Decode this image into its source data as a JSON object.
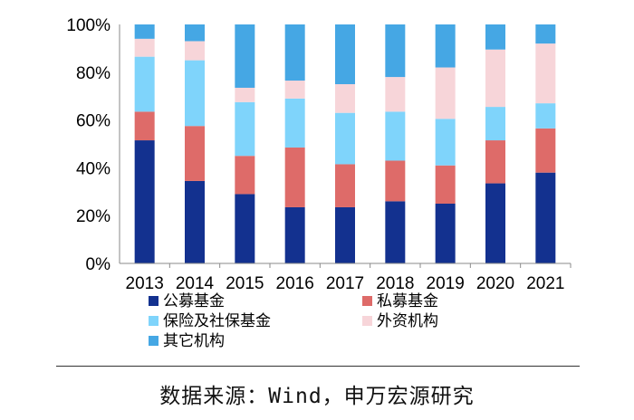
{
  "chart_data": {
    "type": "stacked-bar-100",
    "categories": [
      "2013",
      "2014",
      "2015",
      "2016",
      "2017",
      "2018",
      "2019",
      "2020",
      "2021"
    ],
    "ylim": [
      0,
      100
    ],
    "yticks": [
      "0%",
      "20%",
      "40%",
      "60%",
      "80%",
      "100%"
    ],
    "series": [
      {
        "name": "公募基金",
        "color": "#13318f",
        "values": [
          51.5,
          34.5,
          29,
          23.5,
          23.5,
          26,
          25,
          33.5,
          38
        ]
      },
      {
        "name": "私募基金",
        "color": "#de6b69",
        "values": [
          12,
          23,
          16,
          25,
          18,
          17,
          16,
          18,
          18.5
        ]
      },
      {
        "name": "保险及社保基金",
        "color": "#7fd4fb",
        "values": [
          23,
          27.5,
          22.5,
          20.5,
          21.5,
          20.5,
          19.5,
          14,
          10.5
        ]
      },
      {
        "name": "外资机构",
        "color": "#f7d5d9",
        "values": [
          7.5,
          8,
          6,
          7.5,
          12,
          14.5,
          21.5,
          24,
          25
        ]
      },
      {
        "name": "其它机构",
        "color": "#45a7e4",
        "values": [
          6,
          7,
          26.5,
          23.5,
          25,
          22,
          18,
          10.5,
          8
        ]
      }
    ],
    "legend_position": "bottom"
  },
  "source": "数据来源：Wind，申万宏源研究"
}
